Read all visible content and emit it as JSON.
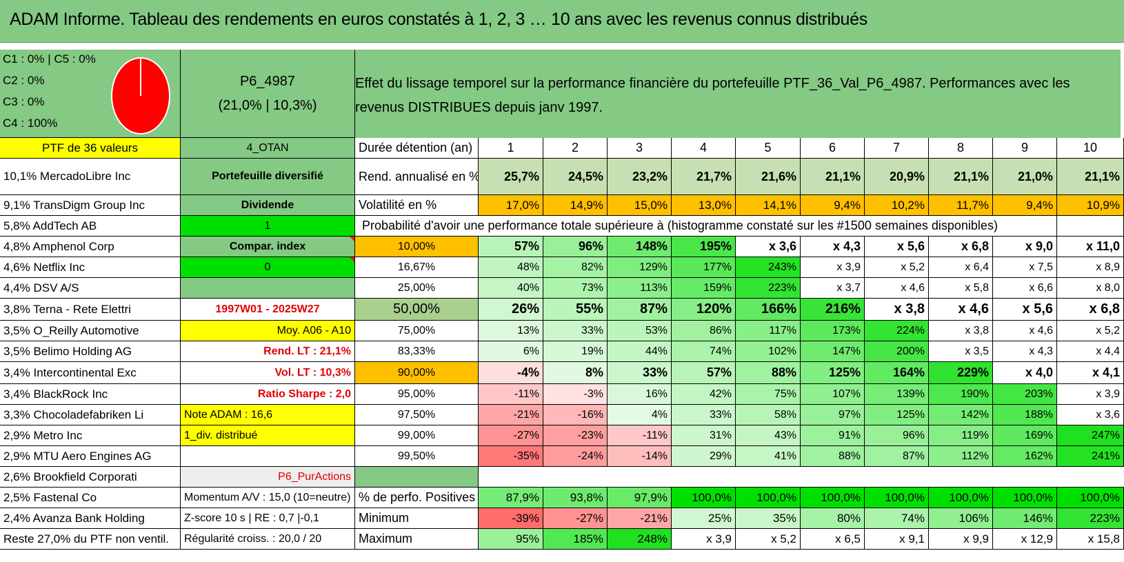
{
  "title": "ADAM Informe. Tableau des rendements en euros constatés à 1, 2, 3 … 10 ans avec les revenus connus distribués",
  "allocation": {
    "lines": [
      "C1 : 0% | C5 : 0%",
      "C2 : 0%",
      "C3 : 0%",
      "C4 : 100%"
    ],
    "pie": {
      "C4": 100,
      "color": "#ff0000"
    }
  },
  "portfolio_code": "P6_4987",
  "portfolio_stats": "(21,0% | 10,3%)",
  "description": "Effet du lissage temporel sur la performance financière du portefeuille PTF_36_Val_P6_4987. Performances avec les revenus DISTRIBUES depuis janv 1997.",
  "holdings": [
    "PTF de 36 valeurs",
    "10,1% MercadoLibre Inc",
    "9,1% TransDigm Group Inc",
    "5,8% AddTech AB",
    "4,8% Amphenol Corp",
    "4,6% Netflix Inc",
    "4,4% DSV A/S",
    "3,8% Terna - Rete Elettri",
    "3,5% O_Reilly Automotive",
    "3,5% Belimo Holding AG",
    "3,4% Intercontinental Exc",
    "3,4% BlackRock Inc",
    "3,3% Chocoladefabriken Li",
    "2,9% Metro Inc",
    "2,9% MTU Aero Engines AG",
    "2,6% Brookfield Corporati",
    "2,5% Fastenal Co",
    "2,4% Avanza Bank Holding",
    "Reste 27,0% du PTF non ventil."
  ],
  "info": [
    "4_OTAN",
    "Portefeuille diversifié",
    "Dividende",
    "1",
    "Compar. index",
    "0",
    "",
    "1997W01 - 2025W27",
    "Moy. A06 - A10",
    "Rend. LT : 21,1%",
    "Vol. LT : 10,3%",
    "Ratio Sharpe : 2,0",
    "Note ADAM : 16,6",
    "1_div. distribué",
    "",
    "P6_PurActions",
    "Momentum A/V : 15,0 (10=neutre)",
    "Z-score 10 s | RE : 0,7 |-0,1",
    "Régularité croiss. : 20,0 / 20"
  ],
  "header_label": "Durée détention (an)",
  "years": [
    "1",
    "2",
    "3",
    "4",
    "5",
    "6",
    "7",
    "8",
    "9",
    "10"
  ],
  "rend_label": "Rend. annualisé en %",
  "rend": [
    "25,7%",
    "24,5%",
    "23,2%",
    "21,7%",
    "21,6%",
    "21,1%",
    "20,9%",
    "21,1%",
    "21,0%",
    "21,1%"
  ],
  "vol_label": "Volatilité en %",
  "vol": [
    "17,0%",
    "14,9%",
    "15,0%",
    "13,0%",
    "14,1%",
    "9,4%",
    "10,2%",
    "11,7%",
    "9,4%",
    "10,9%"
  ],
  "prob_title": "Probabilité d'avoir une performance totale supérieure à (histogramme constaté sur les #1500 semaines disponibles)",
  "prob_rows": [
    {
      "label": "10,00%",
      "values": [
        "57%",
        "96%",
        "148%",
        "195%",
        "x 3,6",
        "x 4,3",
        "x 5,6",
        "x 6,8",
        "x 9,0",
        "x 11,0"
      ]
    },
    {
      "label": "16,67%",
      "values": [
        "48%",
        "82%",
        "129%",
        "177%",
        "243%",
        "x 3,9",
        "x 5,2",
        "x 6,4",
        "x 7,5",
        "x 8,9"
      ]
    },
    {
      "label": "25,00%",
      "values": [
        "40%",
        "73%",
        "113%",
        "159%",
        "223%",
        "x 3,7",
        "x 4,6",
        "x 5,8",
        "x 6,6",
        "x 8,0"
      ]
    },
    {
      "label": "50,00%",
      "values": [
        "26%",
        "55%",
        "87%",
        "120%",
        "166%",
        "216%",
        "x 3,8",
        "x 4,6",
        "x 5,6",
        "x 6,8"
      ]
    },
    {
      "label": "75,00%",
      "values": [
        "13%",
        "33%",
        "53%",
        "86%",
        "117%",
        "173%",
        "224%",
        "x 3,8",
        "x 4,6",
        "x 5,2"
      ]
    },
    {
      "label": "83,33%",
      "values": [
        "6%",
        "19%",
        "44%",
        "74%",
        "102%",
        "147%",
        "200%",
        "x 3,5",
        "x 4,3",
        "x 4,4"
      ]
    },
    {
      "label": "90,00%",
      "values": [
        "-4%",
        "8%",
        "33%",
        "57%",
        "88%",
        "125%",
        "164%",
        "229%",
        "x 4,0",
        "x 4,1"
      ]
    },
    {
      "label": "95,00%",
      "values": [
        "-11%",
        "-3%",
        "16%",
        "42%",
        "75%",
        "107%",
        "139%",
        "190%",
        "203%",
        "x 3,9"
      ]
    },
    {
      "label": "97,50%",
      "values": [
        "-21%",
        "-16%",
        "4%",
        "33%",
        "58%",
        "97%",
        "125%",
        "142%",
        "188%",
        "x 3,6"
      ]
    },
    {
      "label": "99,00%",
      "values": [
        "-27%",
        "-23%",
        "-11%",
        "31%",
        "43%",
        "91%",
        "96%",
        "119%",
        "169%",
        "247%"
      ]
    },
    {
      "label": "99,50%",
      "values": [
        "-35%",
        "-24%",
        "-14%",
        "29%",
        "41%",
        "88%",
        "87%",
        "112%",
        "162%",
        "241%"
      ]
    }
  ],
  "pos_label": "% de perfo. Positives",
  "pos": [
    "87,9%",
    "93,8%",
    "97,9%",
    "100,0%",
    "100,0%",
    "100,0%",
    "100,0%",
    "100,0%",
    "100,0%",
    "100,0%"
  ],
  "min_label": "Minimum",
  "min": [
    "-39%",
    "-27%",
    "-21%",
    "25%",
    "35%",
    "80%",
    "74%",
    "106%",
    "146%",
    "223%"
  ],
  "max_label": "Maximum",
  "max": [
    "95%",
    "185%",
    "248%",
    "x 3,9",
    "x 5,2",
    "x 6,5",
    "x 9,1",
    "x 9,9",
    "x 12,9",
    "x 15,8"
  ],
  "colors": {
    "title_bg": "#84c984",
    "yellow": "#ffff00",
    "orange": "#ffc000",
    "bright_green": "#00e000",
    "mid_green": "#84c984",
    "red_text": "#e00000"
  }
}
